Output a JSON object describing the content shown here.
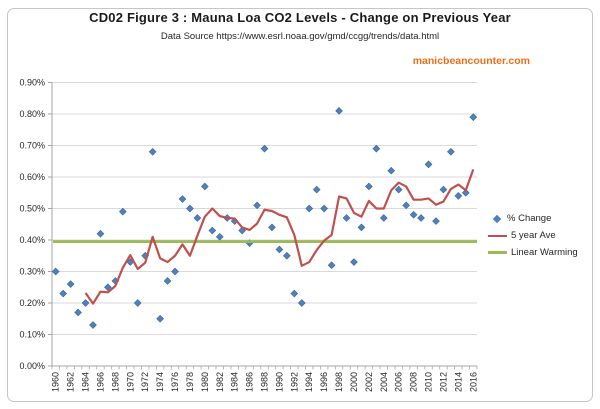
{
  "page": {
    "title": "CD02 Figure 3 : Mauna Loa CO2 Levels - Change on Previous Year",
    "subtitle": "Data Source https://www.esrl.noaa.gov/gmd/ccgg/trends/data.html",
    "watermark": "manicbeancounter.com"
  },
  "colors": {
    "percent_change": "#4f81bd",
    "percent_change_border": "#38639a",
    "five_year_ave": "#c0504d",
    "linear_warming": "#9bbb59",
    "watermark": "#e8701a",
    "gridline": "#d9d9d9",
    "axis": "#a6a6a6",
    "tick_label": "#262626"
  },
  "chart_data": {
    "type": "scatter",
    "title": "CD02 Figure 3 : Mauna Loa CO2 Levels - Change on Previous Year",
    "subtitle": "Data Source https://www.esrl.noaa.gov/gmd/ccgg/trends/data.html",
    "xlabel": "",
    "ylabel": "",
    "ylim": [
      0.0,
      0.9
    ],
    "ytick_step": 0.1,
    "y_tick_labels": [
      "0.00%",
      "0.10%",
      "0.20%",
      "0.30%",
      "0.40%",
      "0.50%",
      "0.60%",
      "0.70%",
      "0.80%",
      "0.90%"
    ],
    "grid": "horizontal",
    "legend_position": "right",
    "x": [
      1960,
      1961,
      1962,
      1963,
      1964,
      1965,
      1966,
      1967,
      1968,
      1969,
      1970,
      1971,
      1972,
      1973,
      1974,
      1975,
      1976,
      1977,
      1978,
      1979,
      1980,
      1981,
      1982,
      1983,
      1984,
      1985,
      1986,
      1987,
      1988,
      1989,
      1990,
      1991,
      1992,
      1993,
      1994,
      1995,
      1996,
      1997,
      1998,
      1999,
      2000,
      2001,
      2002,
      2003,
      2004,
      2005,
      2006,
      2007,
      2008,
      2009,
      2010,
      2011,
      2012,
      2013,
      2014,
      2015,
      2016
    ],
    "x_tick_labels": [
      "1960",
      "1962",
      "1964",
      "1966",
      "1968",
      "1970",
      "1972",
      "1974",
      "1976",
      "1978",
      "1980",
      "1982",
      "1984",
      "1986",
      "1988",
      "1990",
      "1992",
      "1994",
      "1996",
      "1998",
      "2000",
      "2002",
      "2004",
      "2006",
      "2008",
      "2010",
      "2012",
      "2014",
      "2016"
    ],
    "series": [
      {
        "name": "% Change",
        "type": "scatter",
        "marker": "diamond",
        "color": "#4f81bd",
        "unit": "percent",
        "values": [
          0.3,
          0.23,
          0.26,
          0.17,
          0.2,
          0.13,
          0.42,
          0.25,
          0.27,
          0.49,
          0.33,
          0.2,
          0.35,
          0.68,
          0.15,
          0.27,
          0.3,
          0.53,
          0.5,
          0.47,
          0.57,
          0.43,
          0.41,
          0.47,
          0.46,
          0.43,
          0.39,
          0.51,
          0.69,
          0.44,
          0.37,
          0.35,
          0.23,
          0.2,
          0.5,
          0.56,
          0.5,
          0.32,
          0.81,
          0.47,
          0.33,
          0.44,
          0.57,
          0.69,
          0.47,
          0.62,
          0.56,
          0.51,
          0.48,
          0.47,
          0.64,
          0.46,
          0.56,
          0.68,
          0.54,
          0.55,
          0.79
        ]
      },
      {
        "name": "5 year Ave",
        "type": "line",
        "color": "#c0504d",
        "unit": "percent",
        "first_year": 1964,
        "values": [
          0.232,
          0.198,
          0.236,
          0.234,
          0.254,
          0.312,
          0.352,
          0.308,
          0.328,
          0.41,
          0.342,
          0.33,
          0.35,
          0.386,
          0.35,
          0.414,
          0.474,
          0.5,
          0.476,
          0.47,
          0.468,
          0.44,
          0.432,
          0.452,
          0.496,
          0.492,
          0.48,
          0.472,
          0.416,
          0.318,
          0.33,
          0.368,
          0.398,
          0.416,
          0.538,
          0.532,
          0.486,
          0.474,
          0.524,
          0.5,
          0.5,
          0.558,
          0.582,
          0.57,
          0.528,
          0.528,
          0.532,
          0.512,
          0.522,
          0.562,
          0.576,
          0.558,
          0.624
        ]
      },
      {
        "name": "Linear Warming",
        "type": "horizontal-line",
        "color": "#9bbb59",
        "unit": "percent",
        "value": 0.395
      }
    ]
  }
}
